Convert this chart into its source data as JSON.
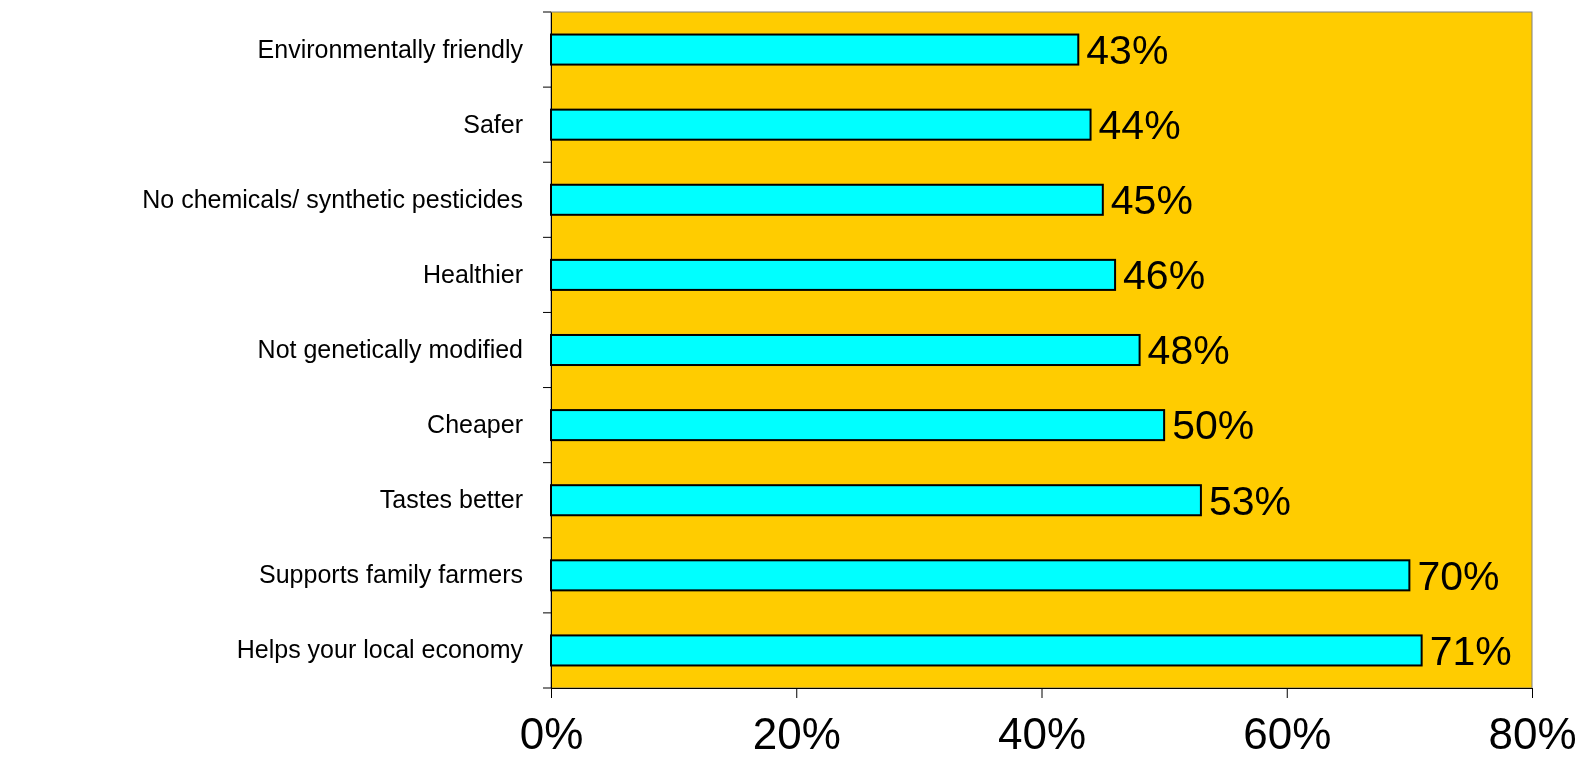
{
  "chart_data": {
    "type": "bar",
    "orientation": "horizontal",
    "categories": [
      "Environmentally friendly",
      "Safer",
      "No chemicals/ synthetic pesticides",
      "Healthier",
      "Not genetically modified",
      "Cheaper",
      "Tastes better",
      "Supports family farmers",
      "Helps your local economy"
    ],
    "values": [
      43,
      44,
      45,
      46,
      48,
      50,
      53,
      70,
      71
    ],
    "value_labels": [
      "43%",
      "44%",
      "45%",
      "46%",
      "48%",
      "50%",
      "53%",
      "70%",
      "71%"
    ],
    "color": "#00ffff",
    "xlim": [
      0,
      80
    ],
    "xticks": [
      {
        "value": 0,
        "label": "0%"
      },
      {
        "value": 20,
        "label": "20%"
      },
      {
        "value": 40,
        "label": "40%"
      },
      {
        "value": 60,
        "label": "60%"
      },
      {
        "value": 80,
        "label": "80%"
      }
    ],
    "grid": false
  }
}
